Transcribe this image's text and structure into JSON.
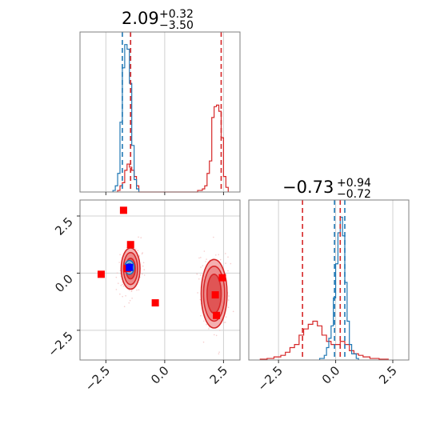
{
  "colors": {
    "blue": "#1f77b4",
    "red": "#d62728",
    "marker_red": "#ff0000",
    "marker_blue": "#0000ff",
    "grid": "#d0d0d0",
    "frame": "#7f7f7f"
  },
  "chart_data": {
    "type": "corner",
    "grid": true,
    "titles": {
      "p1": {
        "value": "2.09",
        "plus": "+0.32",
        "minus": "−3.50"
      },
      "p2": {
        "value": "−0.73",
        "plus": "+0.94",
        "minus": "−0.72"
      }
    },
    "ranges": {
      "p1": [
        -3.6,
        3.2
      ],
      "p2": [
        -3.8,
        3.2
      ]
    },
    "ticks": {
      "p1_x": [
        -2.5,
        0.0,
        2.5
      ],
      "p1_x_labels": [
        "−2.5",
        "0.0",
        "2.5"
      ],
      "p2_y": [
        -2.5,
        0.0,
        2.5
      ],
      "p2_y_labels": [
        "−2.5",
        "0.0",
        "2.5"
      ],
      "p2_x": [
        -2.5,
        0.0,
        2.5
      ],
      "p2_x_labels": [
        "−2.5",
        "0.0",
        "2.5"
      ]
    },
    "hist_p1": {
      "blue_quantiles": [
        -1.8,
        -1.45
      ],
      "red_quantiles": [
        -1.45,
        2.4
      ],
      "blue_steps": [
        [
          -2.2,
          0.01
        ],
        [
          -2.1,
          0.04
        ],
        [
          -2.0,
          0.12
        ],
        [
          -1.9,
          0.45
        ],
        [
          -1.8,
          0.8
        ],
        [
          -1.7,
          0.95
        ],
        [
          -1.6,
          0.92
        ],
        [
          -1.5,
          0.7
        ],
        [
          -1.4,
          0.3
        ],
        [
          -1.3,
          0.08
        ],
        [
          -1.2,
          0.02
        ],
        [
          -1.1,
          0.0
        ]
      ],
      "red_steps": [
        [
          -2.0,
          0.01
        ],
        [
          -1.9,
          0.04
        ],
        [
          -1.8,
          0.06
        ],
        [
          -1.7,
          0.14
        ],
        [
          -1.6,
          0.18
        ],
        [
          -1.5,
          0.16
        ],
        [
          -1.4,
          0.14
        ],
        [
          -1.3,
          0.1
        ],
        [
          -1.2,
          0.04
        ],
        [
          -1.1,
          0.0
        ],
        [
          1.4,
          0.01
        ],
        [
          1.6,
          0.02
        ],
        [
          1.7,
          0.04
        ],
        [
          1.8,
          0.12
        ],
        [
          1.9,
          0.2
        ],
        [
          2.0,
          0.48
        ],
        [
          2.1,
          0.55
        ],
        [
          2.2,
          0.56
        ],
        [
          2.3,
          0.52
        ],
        [
          2.4,
          0.35
        ],
        [
          2.5,
          0.1
        ],
        [
          2.6,
          0.03
        ],
        [
          2.7,
          0.0
        ]
      ]
    },
    "hist_p2": {
      "blue_quantiles": [
        -0.05,
        0.4
      ],
      "red_quantiles": [
        -1.45,
        0.2
      ],
      "blue_steps": [
        [
          -0.7,
          0.01
        ],
        [
          -0.5,
          0.03
        ],
        [
          -0.4,
          0.08
        ],
        [
          -0.3,
          0.14
        ],
        [
          -0.2,
          0.22
        ],
        [
          -0.1,
          0.4
        ],
        [
          0.0,
          0.62
        ],
        [
          0.1,
          0.82
        ],
        [
          0.2,
          0.92
        ],
        [
          0.3,
          0.8
        ],
        [
          0.4,
          0.5
        ],
        [
          0.5,
          0.25
        ],
        [
          0.6,
          0.1
        ],
        [
          0.7,
          0.04
        ],
        [
          0.9,
          0.01
        ],
        [
          1.0,
          0.0
        ]
      ],
      "red_steps": [
        [
          -3.3,
          0.005
        ],
        [
          -3.0,
          0.01
        ],
        [
          -2.7,
          0.02
        ],
        [
          -2.4,
          0.03
        ],
        [
          -2.2,
          0.05
        ],
        [
          -2.0,
          0.08
        ],
        [
          -1.8,
          0.1
        ],
        [
          -1.6,
          0.16
        ],
        [
          -1.4,
          0.2
        ],
        [
          -1.2,
          0.23
        ],
        [
          -1.0,
          0.25
        ],
        [
          -0.8,
          0.22
        ],
        [
          -0.6,
          0.16
        ],
        [
          -0.4,
          0.12
        ],
        [
          -0.2,
          0.1
        ],
        [
          0.0,
          0.1
        ],
        [
          0.2,
          0.12
        ],
        [
          0.4,
          0.1
        ],
        [
          0.6,
          0.06
        ],
        [
          0.8,
          0.04
        ],
        [
          1.0,
          0.03
        ],
        [
          1.2,
          0.02
        ],
        [
          1.5,
          0.01
        ],
        [
          1.9,
          0.005
        ],
        [
          2.3,
          0.0
        ]
      ]
    },
    "contours_2d": {
      "red_blob_1": {
        "cx": -1.45,
        "cy": 0.2,
        "rx": [
          0.4,
          0.3,
          0.2
        ],
        "ry": [
          0.9,
          0.7,
          0.45
        ]
      },
      "red_blob_2": {
        "cx": 2.1,
        "cy": -0.9,
        "rx": [
          0.55,
          0.45,
          0.3
        ],
        "ry": [
          1.5,
          1.2,
          0.85
        ]
      },
      "blue_blob": {
        "cx": -1.5,
        "cy": 0.25,
        "rx": [
          0.2,
          0.12
        ],
        "ry": [
          0.3,
          0.18
        ]
      }
    },
    "markers_red": [
      [
        -2.7,
        -0.05
      ],
      [
        -1.75,
        2.75
      ],
      [
        -1.45,
        1.25
      ],
      [
        -1.6,
        0.2
      ],
      [
        -0.4,
        -1.3
      ],
      [
        2.15,
        -0.95
      ],
      [
        2.45,
        -0.2
      ],
      [
        2.2,
        -1.85
      ]
    ],
    "marker_blue": [
      -1.5,
      0.25
    ]
  }
}
